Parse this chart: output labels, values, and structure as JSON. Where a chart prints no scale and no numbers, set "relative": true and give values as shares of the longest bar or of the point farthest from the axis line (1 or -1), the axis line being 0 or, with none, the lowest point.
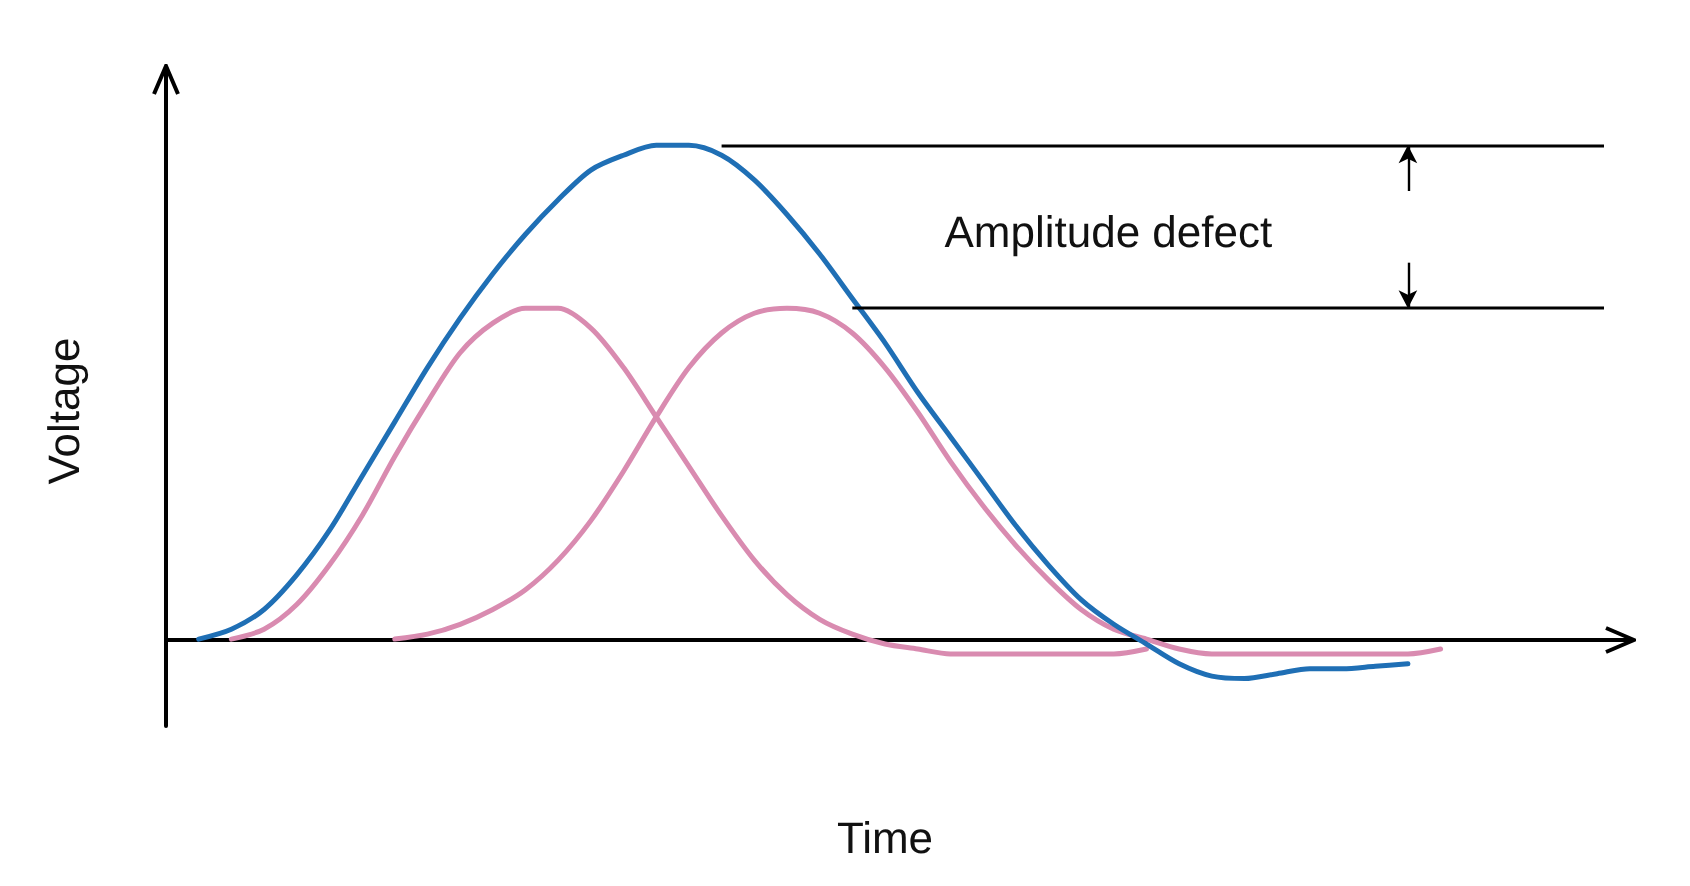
{
  "chart_data": {
    "type": "line",
    "relative": true,
    "xlabel": "Time",
    "ylabel": "Voltage",
    "grid": false,
    "marker": "none",
    "line_style": "solid",
    "categories": [
      null,
      null,
      null,
      null,
      null,
      null,
      null,
      null,
      null,
      null,
      null,
      null,
      null,
      null,
      null,
      null,
      null,
      null,
      null,
      null,
      null,
      null,
      null,
      null,
      null,
      null,
      null,
      null,
      null,
      null,
      null,
      null,
      null,
      null,
      null,
      null,
      null,
      null,
      null,
      null,
      null,
      null,
      null,
      null,
      null
    ],
    "series": [
      {
        "color": "#1f6fb5",
        "values": [
          null,
          0,
          0.02,
          0.06,
          0.13,
          0.22,
          0.33,
          0.44,
          0.55,
          0.65,
          0.74,
          0.82,
          0.89,
          0.95,
          0.98,
          1,
          1,
          0.98,
          0.93,
          0.86,
          0.78,
          0.69,
          0.6,
          0.5,
          0.41,
          0.32,
          0.23,
          0.15,
          0.08,
          0.03,
          -0.01,
          -0.05,
          -0.075,
          -0.08,
          -0.07,
          -0.06,
          -0.06,
          -0.055,
          -0.05,
          null,
          null,
          null,
          null,
          null,
          null
        ]
      },
      {
        "color": "#d98bb0",
        "values": [
          null,
          null,
          0,
          0.02,
          0.07,
          0.15,
          0.25,
          0.37,
          0.48,
          0.58,
          0.64,
          0.67,
          0.67,
          0.63,
          0.55,
          0.45,
          0.35,
          0.25,
          0.16,
          0.09,
          0.04,
          0.01,
          -0.01,
          -0.02,
          -0.03,
          -0.03,
          -0.03,
          -0.03,
          -0.03,
          -0.03,
          -0.02,
          null,
          null,
          null,
          null,
          null,
          null,
          null,
          null,
          null,
          null,
          null,
          null,
          null,
          null
        ]
      },
      {
        "color": "#d98bb0",
        "values": [
          null,
          null,
          null,
          null,
          null,
          null,
          null,
          0,
          0.01,
          0.03,
          0.06,
          0.1,
          0.16,
          0.24,
          0.34,
          0.45,
          0.55,
          0.62,
          0.66,
          0.67,
          0.66,
          0.62,
          0.55,
          0.46,
          0.36,
          0.27,
          0.19,
          0.12,
          0.06,
          0.02,
          0,
          -0.02,
          -0.03,
          -0.03,
          -0.03,
          -0.03,
          -0.03,
          -0.03,
          -0.03,
          -0.02,
          null,
          null,
          null,
          null,
          null
        ]
      }
    ],
    "ref_lines": [
      {
        "axis": "y",
        "value": 1,
        "color": "#000000"
      },
      {
        "axis": "y",
        "value": 0.67,
        "color": "#000000"
      }
    ],
    "annotations": [
      "Amplitude defect"
    ]
  }
}
